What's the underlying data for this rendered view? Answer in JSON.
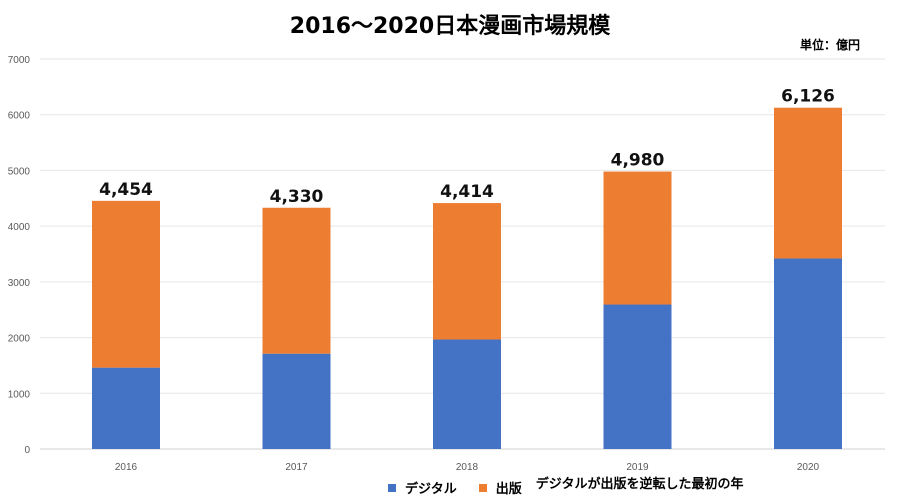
{
  "chart_data": {
    "type": "bar",
    "stacked": true,
    "title": "2016～2020日本漫画市場規模",
    "unit_label": "単位：億円",
    "categories": [
      "2016",
      "2017",
      "2018",
      "2019",
      "2020"
    ],
    "series": [
      {
        "name": "デジタル",
        "color": "#4472C4",
        "values": [
          1460,
          1711,
          1965,
          2593,
          3420
        ]
      },
      {
        "name": "出版",
        "color": "#ED7D31",
        "values": [
          2994,
          2619,
          2449,
          2387,
          2706
        ]
      }
    ],
    "totals": [
      "4,454",
      "4,330",
      "4,414",
      "4,980",
      "6,126"
    ],
    "ylim": [
      0,
      7000
    ],
    "yticks": [
      "0",
      "1000",
      "2000",
      "3000",
      "4000",
      "5000",
      "6000",
      "7000"
    ],
    "grid": true,
    "legend_position": "bottom",
    "annotation": "デジタルが出版を逆転した最初の年",
    "xlabel": "",
    "ylabel": ""
  }
}
